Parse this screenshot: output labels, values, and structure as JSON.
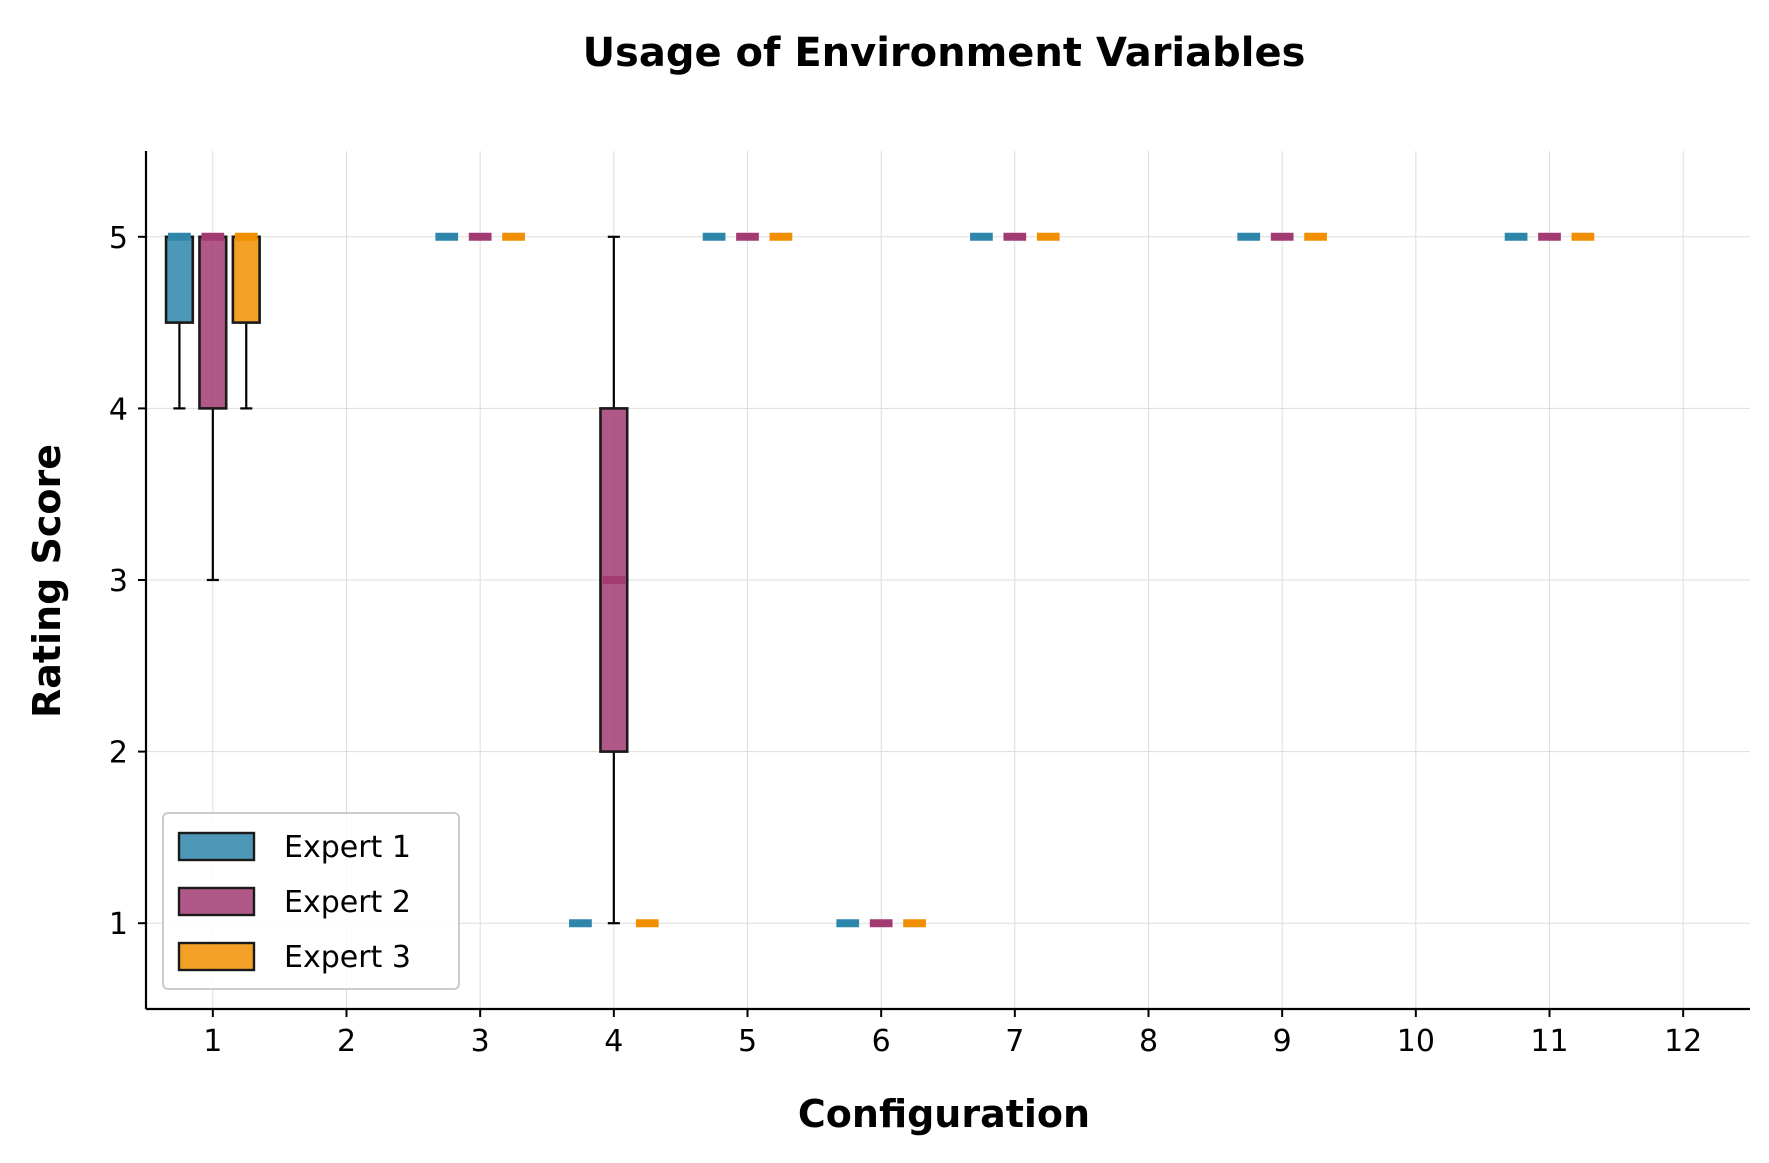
{
  "chart_data": {
    "type": "box",
    "title": "Usage of Environment Variables",
    "xlabel": "Configuration",
    "ylabel": "Rating Score",
    "categories": [
      "1",
      "2",
      "3",
      "4",
      "5",
      "6",
      "7",
      "8",
      "9",
      "10",
      "11",
      "12"
    ],
    "y_ticks": [
      "1",
      "2",
      "3",
      "4",
      "5"
    ],
    "xlim": [
      0.5,
      12.5
    ],
    "ylim": [
      0.5,
      5.5
    ],
    "grid": true,
    "legend": "lower-left",
    "series": [
      {
        "name": "Expert 1",
        "color": "#2e86ab",
        "boxes": [
          {
            "x": 1,
            "q1": 4.5,
            "median": 5,
            "q3": 5,
            "wmin": 4,
            "wmax": 5
          },
          {
            "x": 3,
            "q1": 5,
            "median": 5,
            "q3": 5,
            "wmin": 5,
            "wmax": 5
          },
          {
            "x": 4,
            "q1": 1,
            "median": 1,
            "q3": 1,
            "wmin": 1,
            "wmax": 1
          },
          {
            "x": 5,
            "q1": 5,
            "median": 5,
            "q3": 5,
            "wmin": 5,
            "wmax": 5
          },
          {
            "x": 6,
            "q1": 1,
            "median": 1,
            "q3": 1,
            "wmin": 1,
            "wmax": 1
          },
          {
            "x": 7,
            "q1": 5,
            "median": 5,
            "q3": 5,
            "wmin": 5,
            "wmax": 5
          },
          {
            "x": 9,
            "q1": 5,
            "median": 5,
            "q3": 5,
            "wmin": 5,
            "wmax": 5
          },
          {
            "x": 11,
            "q1": 5,
            "median": 5,
            "q3": 5,
            "wmin": 5,
            "wmax": 5
          }
        ]
      },
      {
        "name": "Expert 2",
        "color": "#a23b72",
        "boxes": [
          {
            "x": 1,
            "q1": 4,
            "median": 5,
            "q3": 5,
            "wmin": 3,
            "wmax": 5
          },
          {
            "x": 3,
            "q1": 5,
            "median": 5,
            "q3": 5,
            "wmin": 5,
            "wmax": 5
          },
          {
            "x": 4,
            "q1": 2,
            "median": 3,
            "q3": 4,
            "wmin": 1,
            "wmax": 5
          },
          {
            "x": 5,
            "q1": 5,
            "median": 5,
            "q3": 5,
            "wmin": 5,
            "wmax": 5
          },
          {
            "x": 6,
            "q1": 1,
            "median": 1,
            "q3": 1,
            "wmin": 1,
            "wmax": 1
          },
          {
            "x": 7,
            "q1": 5,
            "median": 5,
            "q3": 5,
            "wmin": 5,
            "wmax": 5
          },
          {
            "x": 9,
            "q1": 5,
            "median": 5,
            "q3": 5,
            "wmin": 5,
            "wmax": 5
          },
          {
            "x": 11,
            "q1": 5,
            "median": 5,
            "q3": 5,
            "wmin": 5,
            "wmax": 5
          }
        ]
      },
      {
        "name": "Expert 3",
        "color": "#f18f01",
        "boxes": [
          {
            "x": 1,
            "q1": 4.5,
            "median": 5,
            "q3": 5,
            "wmin": 4,
            "wmax": 5
          },
          {
            "x": 3,
            "q1": 5,
            "median": 5,
            "q3": 5,
            "wmin": 5,
            "wmax": 5
          },
          {
            "x": 4,
            "q1": 1,
            "median": 1,
            "q3": 1,
            "wmin": 1,
            "wmax": 1
          },
          {
            "x": 5,
            "q1": 5,
            "median": 5,
            "q3": 5,
            "wmin": 5,
            "wmax": 5
          },
          {
            "x": 6,
            "q1": 1,
            "median": 1,
            "q3": 1,
            "wmin": 1,
            "wmax": 1
          },
          {
            "x": 7,
            "q1": 5,
            "median": 5,
            "q3": 5,
            "wmin": 5,
            "wmax": 5
          },
          {
            "x": 9,
            "q1": 5,
            "median": 5,
            "q3": 5,
            "wmin": 5,
            "wmax": 5
          },
          {
            "x": 11,
            "q1": 5,
            "median": 5,
            "q3": 5,
            "wmin": 5,
            "wmax": 5
          }
        ]
      }
    ]
  }
}
